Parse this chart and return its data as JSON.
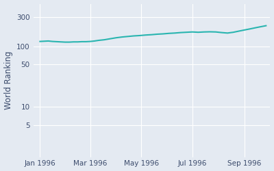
{
  "ylabel": "World Ranking",
  "background_color": "#e4eaf2",
  "line_color": "#2ab5b0",
  "line_width": 1.5,
  "x_tick_labels": [
    "Jan 1996",
    "Mar 1996",
    "May 1996",
    "Jul 1996",
    "Sep 1996"
  ],
  "x_tick_positions": [
    0,
    60,
    121,
    182,
    244
  ],
  "yticks": [
    5,
    10,
    50,
    100,
    300
  ],
  "ylim_log": [
    1.5,
    500
  ],
  "xlim": [
    -8,
    275
  ],
  "dates_days_from_jan1": [
    0,
    5,
    10,
    15,
    20,
    25,
    30,
    35,
    40,
    45,
    50,
    55,
    60,
    65,
    70,
    77,
    84,
    91,
    98,
    105,
    112,
    119,
    126,
    133,
    140,
    147,
    154,
    161,
    168,
    175,
    182,
    189,
    196,
    203,
    210,
    217,
    224,
    231,
    238,
    244,
    250,
    260,
    270
  ],
  "rankings": [
    120,
    121,
    122,
    120,
    119,
    118,
    117,
    117,
    118,
    118,
    119,
    119,
    120,
    122,
    125,
    128,
    133,
    138,
    142,
    145,
    148,
    150,
    153,
    155,
    158,
    160,
    163,
    165,
    168,
    170,
    172,
    170,
    172,
    173,
    172,
    168,
    165,
    170,
    178,
    185,
    192,
    205,
    218
  ]
}
